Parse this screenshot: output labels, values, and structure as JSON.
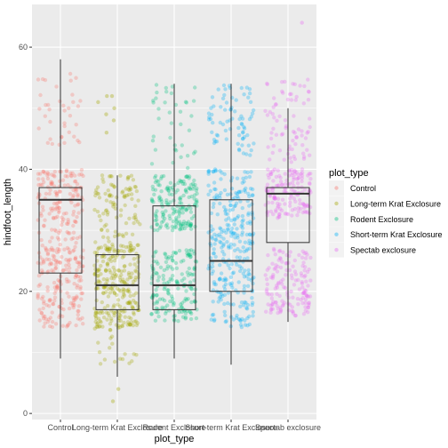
{
  "chart_data": {
    "type": "box",
    "overlay": "jitter-scatter",
    "xlabel": "plot_type",
    "ylabel": "hindfoot_length",
    "categories": [
      "Control",
      "Long-term Krat Exclosure",
      "Rodent Exclosure",
      "Short-term Krat Exclosure",
      "Spectab exclosure"
    ],
    "ylim": [
      -1,
      67
    ],
    "yticks": [
      0,
      20,
      40,
      60
    ],
    "grid": true,
    "legend": {
      "title": "plot_type",
      "placement": "right",
      "entries": [
        "Control",
        "Long-term Krat Exclosure",
        "Rodent Exclosure",
        "Short-term Krat Exclosure",
        "Spectab exclosure"
      ]
    },
    "colors": [
      "#F8766D",
      "#A3A500",
      "#00BF7D",
      "#00B0F6",
      "#E76BF3"
    ],
    "boxes": [
      {
        "category": "Control",
        "min": 9,
        "q1": 23,
        "median": 35,
        "q3": 37,
        "max": 58
      },
      {
        "category": "Long-term Krat Exclosure",
        "min": 6,
        "q1": 17,
        "median": 21,
        "q3": 26,
        "max": 39
      },
      {
        "category": "Rodent Exclosure",
        "min": 9,
        "q1": 17,
        "median": 21,
        "q3": 34,
        "max": 54
      },
      {
        "category": "Short-term Krat Exclosure",
        "min": 8,
        "q1": 20,
        "median": 25,
        "q3": 35,
        "max": 54
      },
      {
        "category": "Spectab exclosure",
        "min": 15,
        "q1": 28,
        "median": 36,
        "q3": 37,
        "max": 50
      }
    ],
    "outliers": [
      {
        "category": "Long-term Krat Exclosure",
        "y": [
          2,
          4,
          46,
          48,
          49,
          50,
          51,
          52,
          52
        ]
      },
      {
        "category": "Spectab exclosure",
        "y": [
          64
        ]
      }
    ],
    "point_clusters": [
      {
        "category": "Control",
        "ranges": [
          [
            14,
            30,
            0.55
          ],
          [
            30,
            40,
            0.35
          ],
          [
            44,
            56,
            0.1
          ]
        ]
      },
      {
        "category": "Long-term Krat Exclosure",
        "ranges": [
          [
            14,
            28,
            0.7
          ],
          [
            28,
            39,
            0.25
          ],
          [
            7,
            14,
            0.05
          ]
        ]
      },
      {
        "category": "Rodent Exclosure",
        "ranges": [
          [
            15,
            27,
            0.45
          ],
          [
            30,
            39,
            0.45
          ],
          [
            40,
            54,
            0.1
          ]
        ]
      },
      {
        "category": "Short-term Krat Exclosure",
        "ranges": [
          [
            14,
            30,
            0.5
          ],
          [
            30,
            40,
            0.3
          ],
          [
            42,
            54,
            0.2
          ]
        ]
      },
      {
        "category": "Spectab exclosure",
        "ranges": [
          [
            16,
            27,
            0.4
          ],
          [
            32,
            40,
            0.4
          ],
          [
            41,
            55,
            0.2
          ]
        ]
      }
    ]
  }
}
